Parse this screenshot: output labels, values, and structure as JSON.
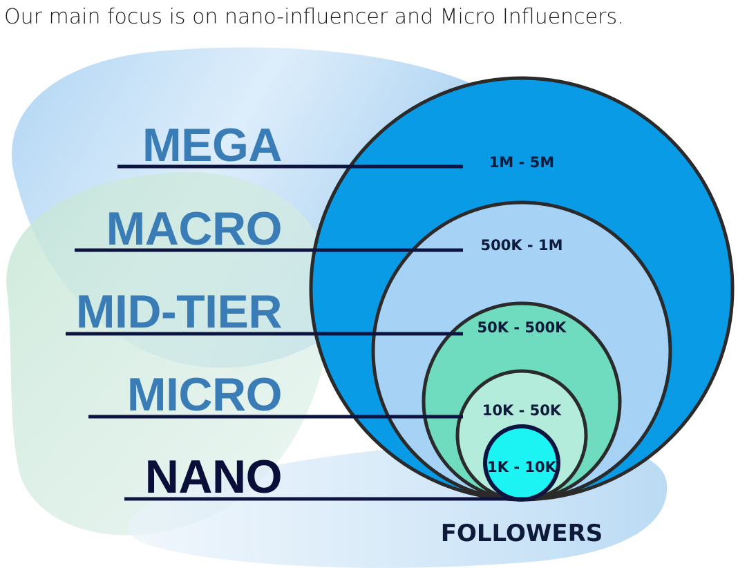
{
  "headline": "Our main focus is on nano-influencer and Micro Influencers.",
  "tiers": [
    {
      "name": "MEGA",
      "range": "1M - 5M",
      "fill": "#0a9be6"
    },
    {
      "name": "MACRO",
      "range": "500K - 1M",
      "fill": "#a6d2f5"
    },
    {
      "name": "MID-TIER",
      "range": "50K - 500K",
      "fill": "#6fdcc0"
    },
    {
      "name": "MICRO",
      "range": "10K - 50K",
      "fill": "#b4ecdc"
    },
    {
      "name": "NANO",
      "range": "1K - 10K",
      "fill": "#1cf4f4"
    }
  ],
  "footer": {
    "followers_label": "FOLLOWERS"
  },
  "colors": {
    "tier_text": "#3a7db6",
    "nano_text": "#0a0f3a",
    "outline": "#2a2a2a",
    "leader": "#0d1440",
    "blob_blue": "#a9d2f4",
    "blob_green": "#cfe9e2"
  }
}
